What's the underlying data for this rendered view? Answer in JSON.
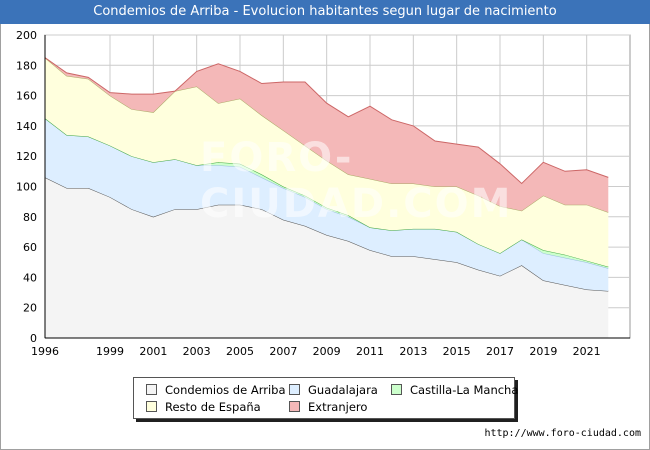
{
  "title": "Condemios de Arriba - Evolucion habitantes segun lugar de nacimiento",
  "source_text": "http://www.foro-ciudad.com",
  "watermark": "FORO-CIUDAD.COM",
  "colors": {
    "title_bar": "#3b73b9",
    "plot_bg": "#ffffff",
    "grid": "#cccccc"
  },
  "chart_data": {
    "type": "area",
    "stacked": true,
    "x": [
      1996,
      1997,
      1998,
      1999,
      2000,
      2001,
      2002,
      2003,
      2004,
      2005,
      2006,
      2007,
      2008,
      2009,
      2010,
      2011,
      2012,
      2013,
      2014,
      2015,
      2016,
      2017,
      2018,
      2019,
      2020,
      2021,
      2022
    ],
    "x_ticks": [
      1996,
      1999,
      2001,
      2003,
      2005,
      2007,
      2009,
      2011,
      2013,
      2015,
      2017,
      2019,
      2021
    ],
    "y_ticks": [
      0,
      20,
      40,
      60,
      80,
      100,
      120,
      140,
      160,
      180,
      200
    ],
    "ylim": [
      0,
      200
    ],
    "xlim": [
      1996,
      2023
    ],
    "grid": true,
    "legend_position": "bottom",
    "series": [
      {
        "name": "Condemios de Arriba",
        "color": "#f4f4f4",
        "line": "#555555",
        "values": [
          106,
          99,
          99,
          93,
          85,
          80,
          85,
          85,
          88,
          88,
          85,
          78,
          74,
          68,
          64,
          58,
          54,
          54,
          52,
          50,
          45,
          41,
          48,
          38,
          35,
          32,
          31
        ]
      },
      {
        "name": "Guadalajara",
        "color": "#ddeeff",
        "line": "#99bbdd",
        "values": [
          39,
          35,
          34,
          34,
          35,
          36,
          33,
          29,
          26,
          25,
          21,
          21,
          19,
          17,
          16,
          15,
          17,
          18,
          20,
          20,
          17,
          15,
          17,
          18,
          18,
          18,
          15
        ]
      },
      {
        "name": "Castilla-La Mancha",
        "color": "#ccffcc",
        "line": "#44aa44",
        "values": [
          0,
          0,
          0,
          0,
          0,
          0,
          0,
          0,
          2,
          2,
          2,
          1,
          1,
          1,
          1,
          0,
          0,
          0,
          0,
          0,
          0,
          0,
          0,
          2,
          2,
          1,
          1
        ]
      },
      {
        "name": "Resto de España",
        "color": "#ffffdd",
        "line": "#aaaa66",
        "values": [
          40,
          39,
          38,
          33,
          31,
          33,
          45,
          52,
          39,
          43,
          39,
          37,
          33,
          31,
          27,
          32,
          31,
          30,
          28,
          30,
          32,
          31,
          19,
          36,
          33,
          37,
          36
        ]
      },
      {
        "name": "Extranjero",
        "color": "#f4b8b8",
        "line": "#cc6666",
        "values": [
          0,
          2,
          1,
          2,
          10,
          12,
          0,
          10,
          26,
          18,
          21,
          32,
          42,
          38,
          38,
          48,
          42,
          38,
          30,
          28,
          32,
          28,
          18,
          22,
          22,
          23,
          23
        ]
      }
    ]
  }
}
